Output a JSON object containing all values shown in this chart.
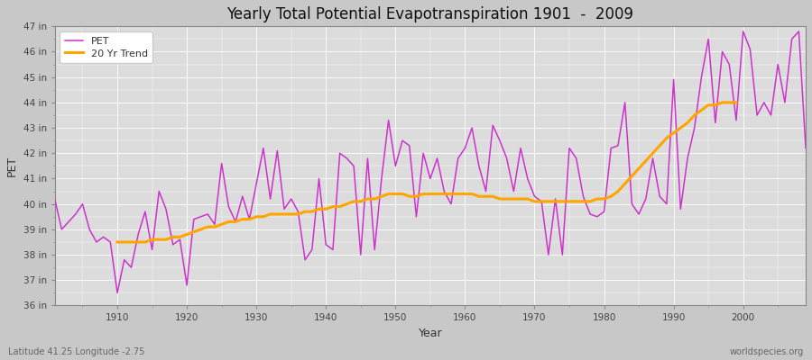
{
  "title": "Yearly Total Potential Evapotranspiration 1901  -  2009",
  "xlabel": "Year",
  "ylabel": "PET",
  "subtitle_left": "Latitude 41.25 Longitude -2.75",
  "subtitle_right": "worldspecies.org",
  "fig_bg_color": "#c8c8c8",
  "plot_bg_color": "#dcdcdc",
  "grid_color": "#ffffff",
  "pet_color": "#cc33cc",
  "trend_color": "#ffa500",
  "ylim": [
    36,
    47
  ],
  "yticks": [
    36,
    37,
    38,
    39,
    40,
    41,
    42,
    43,
    44,
    45,
    46,
    47
  ],
  "xlim_min": 1901,
  "xlim_max": 2009,
  "xticks": [
    1910,
    1920,
    1930,
    1940,
    1950,
    1960,
    1970,
    1980,
    1990,
    2000
  ],
  "years": [
    1901,
    1902,
    1903,
    1904,
    1905,
    1906,
    1907,
    1908,
    1909,
    1910,
    1911,
    1912,
    1913,
    1914,
    1915,
    1916,
    1917,
    1918,
    1919,
    1920,
    1921,
    1922,
    1923,
    1924,
    1925,
    1926,
    1927,
    1928,
    1929,
    1930,
    1931,
    1932,
    1933,
    1934,
    1935,
    1936,
    1937,
    1938,
    1939,
    1940,
    1941,
    1942,
    1943,
    1944,
    1945,
    1946,
    1947,
    1948,
    1949,
    1950,
    1951,
    1952,
    1953,
    1954,
    1955,
    1956,
    1957,
    1958,
    1959,
    1960,
    1961,
    1962,
    1963,
    1964,
    1965,
    1966,
    1967,
    1968,
    1969,
    1970,
    1971,
    1972,
    1973,
    1974,
    1975,
    1976,
    1977,
    1978,
    1979,
    1980,
    1981,
    1982,
    1983,
    1984,
    1985,
    1986,
    1987,
    1988,
    1989,
    1990,
    1991,
    1992,
    1993,
    1994,
    1995,
    1996,
    1997,
    1998,
    1999,
    2000,
    2001,
    2002,
    2003,
    2004,
    2005,
    2006,
    2007,
    2008,
    2009
  ],
  "pet_values": [
    40.2,
    39.0,
    39.3,
    39.6,
    40.0,
    39.0,
    38.5,
    38.7,
    38.5,
    36.5,
    37.8,
    37.5,
    38.8,
    39.7,
    38.2,
    40.5,
    39.8,
    38.4,
    38.6,
    36.8,
    39.4,
    39.5,
    39.6,
    39.2,
    41.6,
    39.9,
    39.3,
    40.3,
    39.4,
    40.8,
    42.2,
    40.2,
    42.1,
    39.8,
    40.2,
    39.7,
    37.8,
    38.2,
    41.0,
    38.4,
    38.2,
    42.0,
    41.8,
    41.5,
    38.0,
    41.8,
    38.2,
    41.0,
    43.3,
    41.5,
    42.5,
    42.3,
    39.5,
    42.0,
    41.0,
    41.8,
    40.5,
    40.0,
    41.8,
    42.2,
    43.0,
    41.5,
    40.5,
    43.1,
    42.5,
    41.8,
    40.5,
    42.2,
    41.0,
    40.3,
    40.1,
    38.0,
    40.2,
    38.0,
    42.2,
    41.8,
    40.3,
    39.6,
    39.5,
    39.7,
    42.2,
    42.3,
    44.0,
    40.0,
    39.6,
    40.2,
    41.8,
    40.3,
    40.0,
    44.9,
    39.8,
    41.8,
    43.0,
    45.0,
    46.5,
    43.2,
    46.0,
    45.5,
    43.3,
    46.8,
    46.1,
    43.5,
    44.0,
    43.5,
    45.5,
    44.0,
    46.5,
    46.8,
    42.2
  ],
  "trend_values": [
    null,
    null,
    null,
    null,
    null,
    null,
    null,
    null,
    null,
    38.5,
    38.5,
    38.5,
    38.5,
    38.5,
    38.6,
    38.6,
    38.6,
    38.7,
    38.7,
    38.8,
    38.9,
    39.0,
    39.1,
    39.1,
    39.2,
    39.3,
    39.3,
    39.4,
    39.4,
    39.5,
    39.5,
    39.6,
    39.6,
    39.6,
    39.6,
    39.6,
    39.7,
    39.7,
    39.8,
    39.8,
    39.9,
    39.9,
    40.0,
    40.1,
    40.1,
    40.2,
    40.2,
    40.3,
    40.4,
    40.4,
    40.4,
    40.3,
    40.3,
    40.4,
    40.4,
    40.4,
    40.4,
    40.4,
    40.4,
    40.4,
    40.4,
    40.3,
    40.3,
    40.3,
    40.2,
    40.2,
    40.2,
    40.2,
    40.2,
    40.1,
    40.1,
    40.1,
    40.1,
    40.1,
    40.1,
    40.1,
    40.1,
    40.1,
    40.2,
    40.2,
    40.3,
    40.5,
    40.8,
    41.1,
    41.4,
    41.7,
    42.0,
    42.3,
    42.6,
    42.8,
    43.0,
    43.2,
    43.5,
    43.7,
    43.9,
    43.9,
    44.0,
    44.0,
    44.0,
    null,
    null,
    null,
    null,
    null,
    null,
    null,
    null,
    null,
    null
  ]
}
